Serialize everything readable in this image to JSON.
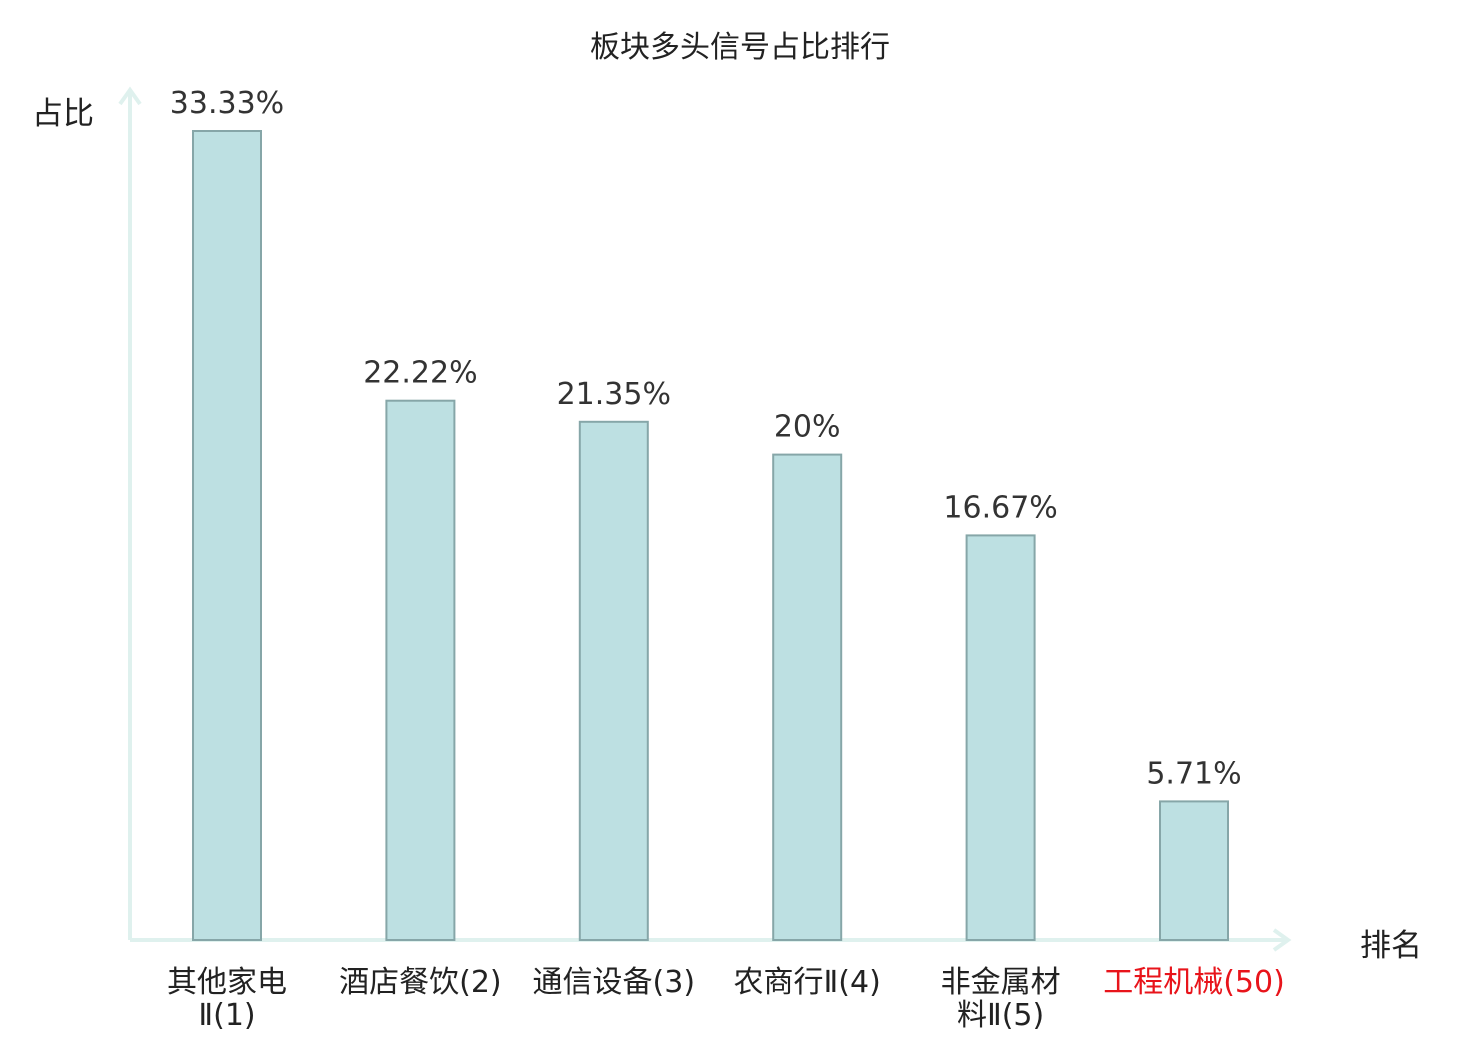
{
  "chart_data": {
    "type": "bar",
    "title": "板块多头信号占比排行",
    "xlabel": "排名",
    "ylabel": "占比",
    "categories": [
      [
        "其他家电",
        "Ⅱ(1)"
      ],
      [
        "酒店餐饮(2)"
      ],
      [
        "通信设备(3)"
      ],
      [
        "农商行Ⅱ(4)"
      ],
      [
        "非金属材",
        "料Ⅱ(5)"
      ],
      [
        "工程机械(50)"
      ]
    ],
    "values": [
      33.33,
      22.22,
      21.35,
      20,
      16.67,
      5.71
    ],
    "value_labels": [
      "33.33%",
      "22.22%",
      "21.35%",
      "20%",
      "16.67%",
      "5.71%"
    ],
    "ylim": [
      0,
      34.5
    ],
    "grid": false,
    "colors": {
      "bar_fill": "#bde0e2",
      "bar_stroke": "#86a6a8",
      "axis": "#dff1ee",
      "highlight_label": "#e8141b",
      "default_label": "#222222"
    },
    "highlight_index": 5
  }
}
